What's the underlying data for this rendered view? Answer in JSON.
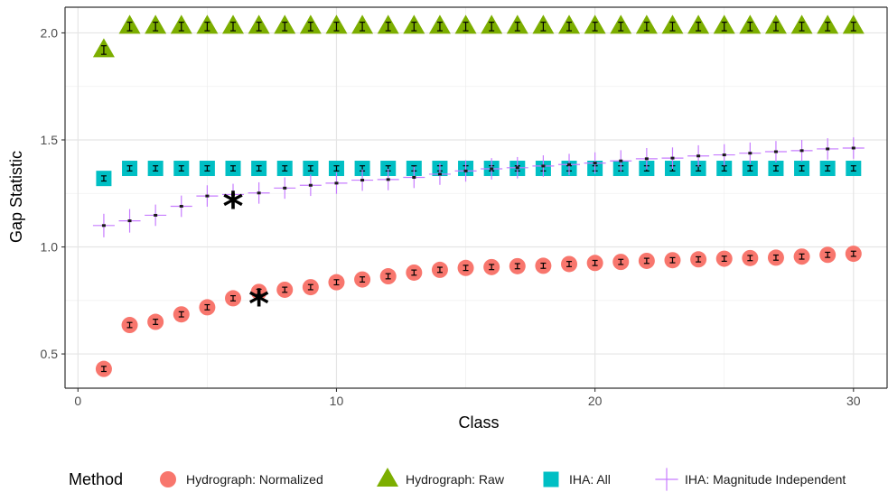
{
  "chart_data": {
    "type": "scatter",
    "title": "",
    "xlabel": "Class",
    "ylabel": "Gap Statistic",
    "xlim": [
      -0.5,
      31.3
    ],
    "ylim": [
      0.34,
      2.12
    ],
    "xticks": [
      0,
      10,
      20,
      30
    ],
    "xtick_labels": [
      "0",
      "10",
      "20",
      "30"
    ],
    "yticks": [
      0.5,
      1.0,
      1.5,
      2.0
    ],
    "ytick_labels": [
      "0.5",
      "1.0",
      "1.5",
      "2.0"
    ],
    "grid": true,
    "legend": {
      "title": "Method",
      "position": "bottom"
    },
    "series": [
      {
        "name": "Hydrograph: Normalized",
        "marker": "circle",
        "color": "#F8766D",
        "x": [
          1,
          2,
          3,
          4,
          5,
          6,
          7,
          8,
          9,
          10,
          11,
          12,
          13,
          14,
          15,
          16,
          17,
          18,
          19,
          20,
          21,
          22,
          23,
          24,
          25,
          26,
          27,
          28,
          29,
          30
        ],
        "y": [
          0.43,
          0.635,
          0.65,
          0.685,
          0.718,
          0.76,
          0.79,
          0.8,
          0.812,
          0.835,
          0.848,
          0.863,
          0.88,
          0.893,
          0.902,
          0.906,
          0.91,
          0.912,
          0.92,
          0.925,
          0.93,
          0.935,
          0.938,
          0.942,
          0.945,
          0.948,
          0.95,
          0.955,
          0.963,
          0.968
        ],
        "err": [
          0.012,
          0.012,
          0.012,
          0.012,
          0.012,
          0.012,
          0.012,
          0.012,
          0.012,
          0.012,
          0.012,
          0.012,
          0.012,
          0.012,
          0.012,
          0.012,
          0.012,
          0.012,
          0.012,
          0.012,
          0.012,
          0.012,
          0.012,
          0.012,
          0.012,
          0.012,
          0.012,
          0.012,
          0.012,
          0.012
        ],
        "optimal_x": 7
      },
      {
        "name": "Hydrograph: Raw",
        "marker": "triangle",
        "color": "#7CAE00",
        "x": [
          1,
          2,
          3,
          4,
          5,
          6,
          7,
          8,
          9,
          10,
          11,
          12,
          13,
          14,
          15,
          16,
          17,
          18,
          19,
          20,
          21,
          22,
          23,
          24,
          25,
          26,
          27,
          28,
          29,
          30
        ],
        "y": [
          1.92,
          2.03,
          2.03,
          2.03,
          2.03,
          2.03,
          2.03,
          2.03,
          2.03,
          2.03,
          2.03,
          2.03,
          2.03,
          2.03,
          2.03,
          2.03,
          2.03,
          2.03,
          2.03,
          2.03,
          2.03,
          2.03,
          2.03,
          2.03,
          2.03,
          2.03,
          2.03,
          2.03,
          2.03,
          2.03
        ],
        "err": [
          0.02,
          0.02,
          0.02,
          0.02,
          0.02,
          0.02,
          0.02,
          0.02,
          0.02,
          0.02,
          0.02,
          0.02,
          0.02,
          0.02,
          0.02,
          0.02,
          0.02,
          0.02,
          0.02,
          0.02,
          0.02,
          0.02,
          0.02,
          0.02,
          0.02,
          0.02,
          0.02,
          0.02,
          0.02,
          0.02
        ]
      },
      {
        "name": "IHA: All",
        "marker": "square",
        "color": "#00BFC4",
        "x": [
          1,
          2,
          3,
          4,
          5,
          6,
          7,
          8,
          9,
          10,
          11,
          12,
          13,
          14,
          15,
          16,
          17,
          18,
          19,
          20,
          21,
          22,
          23,
          24,
          25,
          26,
          27,
          28,
          29,
          30
        ],
        "y": [
          1.32,
          1.367,
          1.367,
          1.367,
          1.367,
          1.367,
          1.367,
          1.367,
          1.367,
          1.367,
          1.367,
          1.367,
          1.367,
          1.367,
          1.367,
          1.367,
          1.367,
          1.367,
          1.367,
          1.367,
          1.367,
          1.367,
          1.367,
          1.367,
          1.367,
          1.367,
          1.367,
          1.367,
          1.367,
          1.367
        ],
        "err": [
          0.012,
          0.012,
          0.012,
          0.012,
          0.012,
          0.012,
          0.012,
          0.012,
          0.012,
          0.012,
          0.012,
          0.012,
          0.012,
          0.012,
          0.012,
          0.012,
          0.012,
          0.012,
          0.012,
          0.012,
          0.012,
          0.012,
          0.012,
          0.012,
          0.012,
          0.012,
          0.012,
          0.012,
          0.012,
          0.012
        ]
      },
      {
        "name": "IHA: Magnitude Independent",
        "marker": "cross",
        "color": "#C77CFF",
        "x": [
          1,
          2,
          3,
          4,
          5,
          6,
          7,
          8,
          9,
          10,
          11,
          12,
          13,
          14,
          15,
          16,
          17,
          18,
          19,
          20,
          21,
          22,
          23,
          24,
          25,
          26,
          27,
          28,
          29,
          30
        ],
        "y": [
          1.1,
          1.122,
          1.148,
          1.19,
          1.238,
          1.245,
          1.252,
          1.275,
          1.288,
          1.298,
          1.312,
          1.315,
          1.325,
          1.34,
          1.355,
          1.365,
          1.37,
          1.378,
          1.385,
          1.392,
          1.402,
          1.412,
          1.415,
          1.425,
          1.43,
          1.438,
          1.445,
          1.45,
          1.458,
          1.462
        ],
        "err": [
          0.055,
          0.055,
          0.05,
          0.05,
          0.05,
          0.05,
          0.05,
          0.05,
          0.05,
          0.05,
          0.05,
          0.05,
          0.05,
          0.05,
          0.05,
          0.05,
          0.05,
          0.05,
          0.05,
          0.05,
          0.05,
          0.05,
          0.05,
          0.05,
          0.05,
          0.05,
          0.05,
          0.05,
          0.05,
          0.05
        ],
        "optimal_x": 6
      }
    ]
  }
}
